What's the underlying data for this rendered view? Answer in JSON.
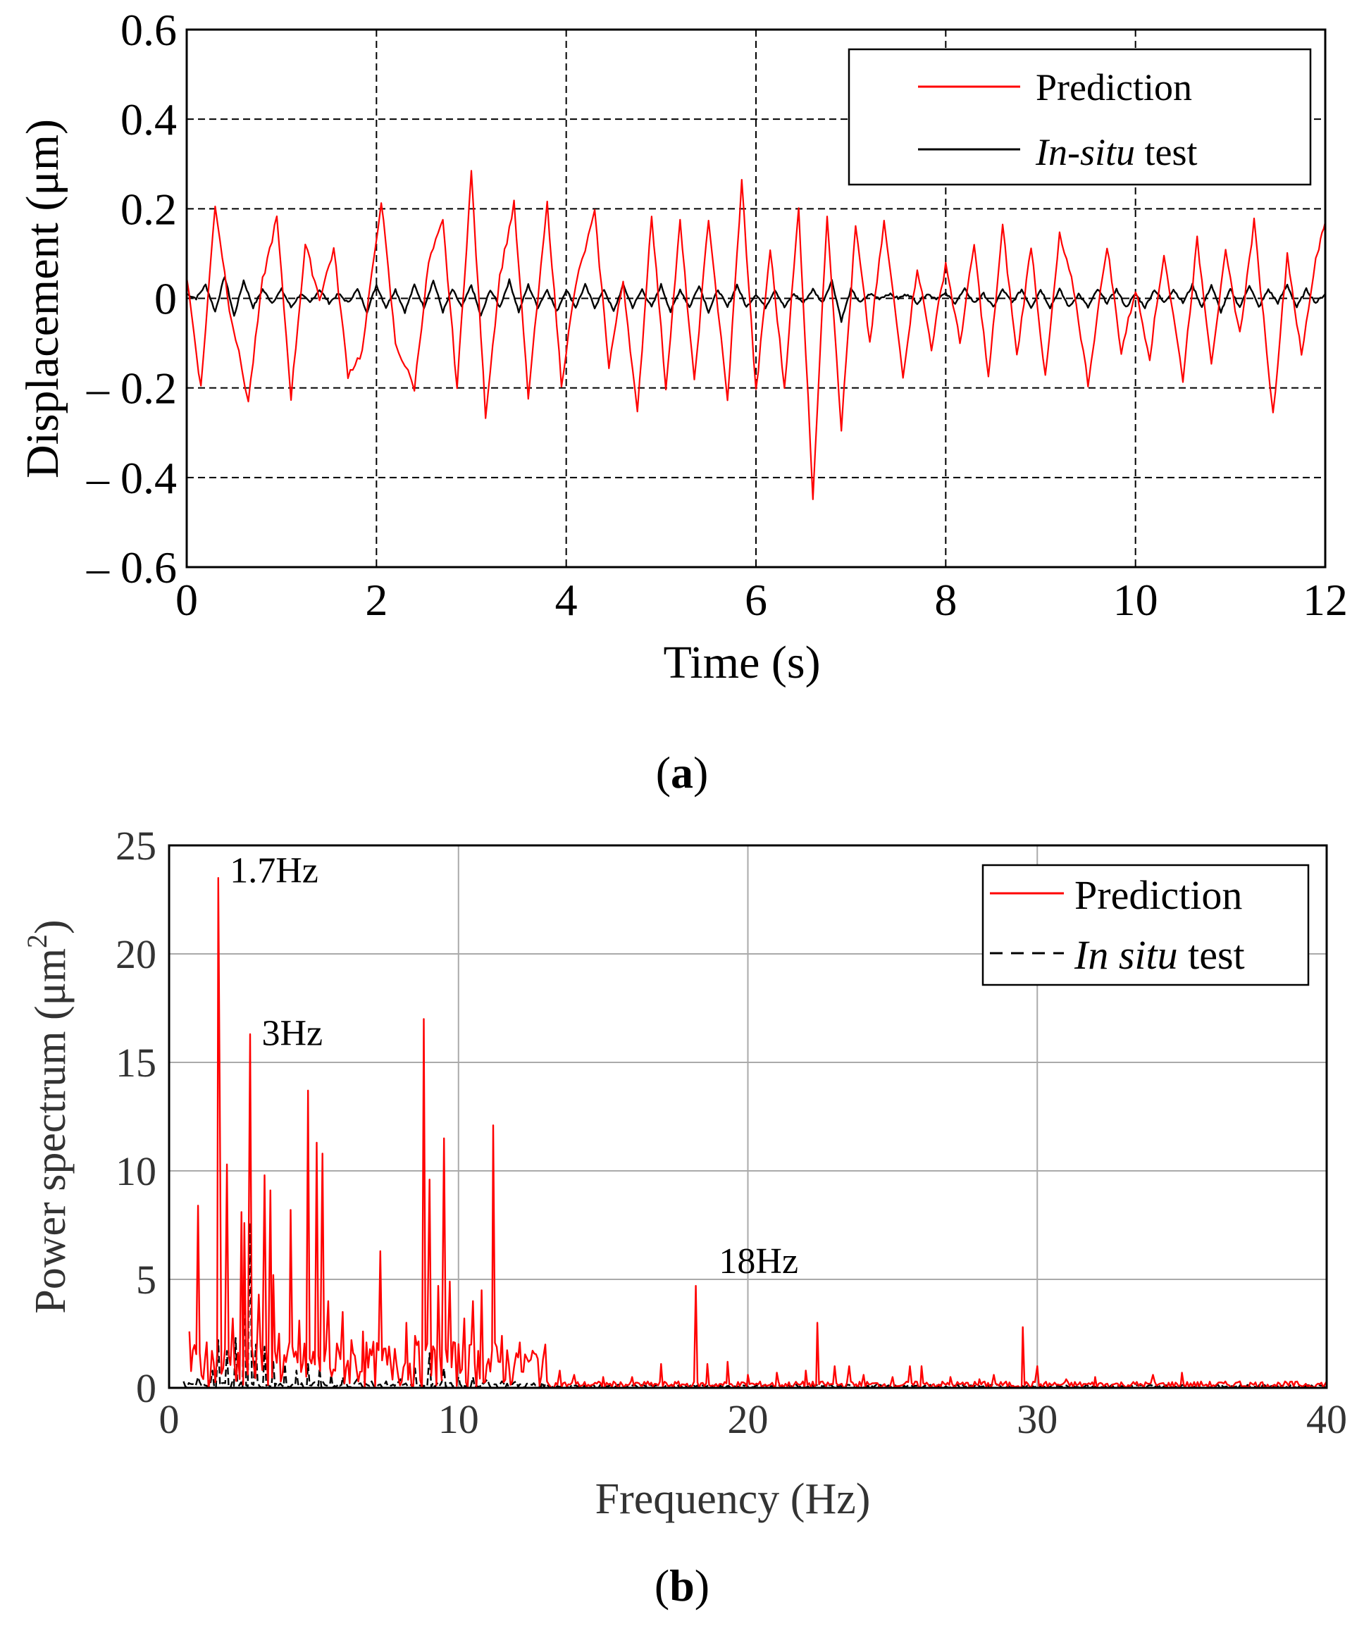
{
  "chart_data": [
    {
      "type": "line",
      "panel_label": "(a)",
      "panel_letter": "a",
      "xlabel": "Time (s)",
      "ylabel": "Displacement (μm)",
      "xlim": [
        0,
        12
      ],
      "ylim": [
        -0.6,
        0.6
      ],
      "xticks": [
        0,
        2,
        4,
        6,
        8,
        10,
        12
      ],
      "xtick_labels": [
        "0",
        "2",
        "4",
        "6",
        "8",
        "10",
        "12"
      ],
      "yticks": [
        0.6,
        0.4,
        0.2,
        0,
        -0.2,
        -0.4,
        -0.6
      ],
      "ytick_labels": [
        "0.6",
        "0.4",
        "0.2",
        "0",
        "– 0.2",
        "– 0.4",
        "– 0.6"
      ],
      "grid": true,
      "legend_position": "top-right",
      "series": [
        {
          "name": "Prediction",
          "color": "#ff0000",
          "style": "solid",
          "x": [
            0.0,
            0.15,
            0.3,
            0.45,
            0.65,
            0.8,
            0.95,
            1.1,
            1.25,
            1.4,
            1.55,
            1.7,
            1.85,
            2.05,
            2.2,
            2.4,
            2.55,
            2.7,
            2.85,
            3.0,
            3.15,
            3.3,
            3.45,
            3.6,
            3.8,
            3.95,
            4.1,
            4.3,
            4.45,
            4.6,
            4.75,
            4.9,
            5.05,
            5.2,
            5.35,
            5.5,
            5.7,
            5.85,
            6.0,
            6.15,
            6.3,
            6.45,
            6.6,
            6.75,
            6.9,
            7.05,
            7.2,
            7.35,
            7.55,
            7.7,
            7.85,
            8.0,
            8.15,
            8.3,
            8.45,
            8.6,
            8.75,
            8.9,
            9.05,
            9.2,
            9.35,
            9.5,
            9.7,
            9.85,
            10.0,
            10.15,
            10.3,
            10.5,
            10.65,
            10.8,
            10.95,
            11.1,
            11.25,
            11.45,
            11.6,
            11.75,
            11.9,
            12.0
          ],
          "y": [
            0.05,
            -0.2,
            0.21,
            -0.02,
            -0.23,
            0.04,
            0.18,
            -0.22,
            0.12,
            0.0,
            0.11,
            -0.17,
            -0.12,
            0.22,
            -0.1,
            -0.2,
            0.08,
            0.17,
            -0.2,
            0.28,
            -0.26,
            0.05,
            0.21,
            -0.22,
            0.21,
            -0.19,
            0.03,
            0.19,
            -0.15,
            0.04,
            -0.26,
            0.19,
            -0.2,
            0.17,
            -0.19,
            0.18,
            -0.23,
            0.26,
            -0.21,
            0.11,
            -0.2,
            0.2,
            -0.44,
            0.19,
            -0.29,
            0.16,
            -0.1,
            0.17,
            -0.17,
            0.07,
            -0.11,
            0.08,
            -0.1,
            0.12,
            -0.18,
            0.16,
            -0.13,
            0.12,
            -0.18,
            0.14,
            0.02,
            -0.19,
            0.12,
            -0.12,
            0.02,
            -0.13,
            0.1,
            -0.18,
            0.13,
            -0.14,
            0.1,
            -0.08,
            0.17,
            -0.26,
            0.1,
            -0.13,
            0.09,
            0.17
          ]
        },
        {
          "name": "In-situ test",
          "name_italic": "In-situ",
          "name_rest": " test",
          "color": "#000000",
          "style": "solid",
          "x": [
            0.0,
            0.1,
            0.2,
            0.3,
            0.4,
            0.5,
            0.6,
            0.7,
            0.8,
            0.9,
            1.0,
            1.1,
            1.2,
            1.3,
            1.4,
            1.5,
            1.6,
            1.7,
            1.8,
            1.9,
            2.0,
            2.1,
            2.2,
            2.3,
            2.4,
            2.5,
            2.6,
            2.7,
            2.8,
            2.9,
            3.0,
            3.1,
            3.2,
            3.3,
            3.4,
            3.5,
            3.6,
            3.7,
            3.8,
            3.9,
            4.0,
            4.1,
            4.2,
            4.3,
            4.4,
            4.5,
            4.6,
            4.7,
            4.8,
            4.9,
            5.0,
            5.1,
            5.2,
            5.3,
            5.4,
            5.5,
            5.6,
            5.7,
            5.8,
            5.9,
            6.0,
            6.1,
            6.2,
            6.3,
            6.4,
            6.5,
            6.6,
            6.7,
            6.8,
            6.9,
            7.0,
            7.1,
            7.2,
            7.3,
            7.4,
            7.5,
            7.6,
            7.7,
            7.8,
            7.9,
            8.0,
            8.1,
            8.2,
            8.3,
            8.4,
            8.5,
            8.6,
            8.7,
            8.8,
            8.9,
            9.0,
            9.1,
            9.2,
            9.3,
            9.4,
            9.5,
            9.6,
            9.7,
            9.8,
            9.9,
            10.0,
            10.1,
            10.2,
            10.3,
            10.4,
            10.5,
            10.6,
            10.7,
            10.8,
            10.9,
            11.0,
            11.1,
            11.2,
            11.3,
            11.4,
            11.5,
            11.6,
            11.7,
            11.8,
            11.9,
            12.0
          ],
          "y": [
            0.01,
            0.0,
            0.03,
            -0.03,
            0.05,
            -0.04,
            0.04,
            -0.02,
            0.02,
            -0.01,
            0.02,
            -0.02,
            0.01,
            -0.01,
            0.02,
            -0.01,
            0.01,
            -0.01,
            0.02,
            -0.03,
            0.03,
            -0.02,
            0.02,
            -0.03,
            0.03,
            -0.02,
            0.04,
            -0.03,
            0.02,
            -0.02,
            0.03,
            -0.04,
            0.02,
            -0.02,
            0.04,
            -0.03,
            0.03,
            -0.02,
            0.02,
            -0.03,
            0.02,
            -0.02,
            0.03,
            -0.02,
            0.02,
            -0.03,
            0.03,
            -0.02,
            0.02,
            -0.02,
            0.03,
            -0.03,
            0.02,
            -0.02,
            0.03,
            -0.03,
            0.02,
            -0.02,
            0.03,
            -0.02,
            0.01,
            -0.02,
            0.02,
            -0.02,
            0.01,
            -0.01,
            0.02,
            -0.01,
            0.04,
            -0.05,
            0.02,
            -0.01,
            0.01,
            0.0,
            0.01,
            0.0,
            0.01,
            -0.01,
            0.01,
            0.0,
            0.01,
            -0.01,
            0.02,
            -0.01,
            0.01,
            -0.02,
            0.02,
            -0.01,
            0.02,
            -0.02,
            0.02,
            -0.02,
            0.02,
            -0.02,
            0.01,
            -0.02,
            0.02,
            -0.01,
            0.02,
            -0.02,
            0.01,
            -0.02,
            0.02,
            -0.01,
            0.02,
            -0.01,
            0.03,
            -0.02,
            0.03,
            -0.03,
            0.02,
            -0.02,
            0.03,
            -0.02,
            0.02,
            -0.01,
            0.03,
            -0.02,
            0.02,
            -0.01,
            0.01
          ]
        }
      ]
    },
    {
      "type": "line",
      "panel_label": "(b)",
      "panel_letter": "b",
      "xlabel": "Frequency (Hz)",
      "ylabel": "Power spectrum (μm",
      "ylabel_sup": "2",
      "ylabel_close": ")",
      "xlim": [
        0,
        40
      ],
      "ylim": [
        0,
        25
      ],
      "xticks": [
        0,
        10,
        20,
        30,
        40
      ],
      "xtick_labels": [
        "0",
        "10",
        "20",
        "30",
        "40"
      ],
      "yticks": [
        0,
        5,
        10,
        15,
        20,
        25
      ],
      "ytick_labels": [
        "0",
        "5",
        "10",
        "15",
        "20",
        "25"
      ],
      "grid": true,
      "legend_position": "top-right",
      "annotations": [
        {
          "text": "1.7Hz",
          "x": 2.1,
          "y": 23.3
        },
        {
          "text": "3Hz",
          "x": 3.2,
          "y": 15.8
        },
        {
          "text": "18Hz",
          "x": 19.0,
          "y": 5.3
        }
      ],
      "series": [
        {
          "name": "Prediction",
          "color": "#ff0000",
          "style": "solid",
          "peaks_x": [
            0.7,
            1.0,
            1.3,
            1.7,
            1.75,
            2.0,
            2.2,
            2.5,
            2.6,
            2.8,
            3.1,
            3.3,
            3.5,
            3.6,
            3.8,
            4.2,
            4.5,
            4.8,
            5.1,
            5.3,
            5.5,
            6.0,
            6.3,
            6.7,
            7.0,
            7.3,
            7.8,
            8.2,
            8.5,
            8.8,
            9.0,
            9.3,
            9.5,
            9.7,
            10.2,
            10.5,
            10.8,
            11.2,
            11.5,
            12.0,
            12.5,
            13.0,
            13.5,
            14.0,
            15.0,
            16.0,
            17.0,
            18.2,
            18.6,
            19.3,
            20.0,
            21.0,
            22.0,
            22.4,
            23.0,
            23.5,
            24.0,
            25.0,
            25.6,
            26.0,
            27.0,
            28.0,
            28.5,
            29.5,
            30.0,
            31.0,
            32.0,
            34.0,
            35.0,
            37.0,
            40.0
          ],
          "peaks_y": [
            2.6,
            8.4,
            2.1,
            23.5,
            13.4,
            10.3,
            3.2,
            8.1,
            7.6,
            16.3,
            4.3,
            9.8,
            9.1,
            5.2,
            2.5,
            8.2,
            3.1,
            13.7,
            11.3,
            10.8,
            4.0,
            3.5,
            2.2,
            2.6,
            1.5,
            6.3,
            1.8,
            3.0,
            2.4,
            17.0,
            9.6,
            4.7,
            11.5,
            4.9,
            3.2,
            4.0,
            4.5,
            12.1,
            2.4,
            1.6,
            1.3,
            2.0,
            0.8,
            0.6,
            0.5,
            0.5,
            1.1,
            4.7,
            1.1,
            1.2,
            0.6,
            0.7,
            0.8,
            3.0,
            1.0,
            1.0,
            0.6,
            0.5,
            1.0,
            1.0,
            0.5,
            0.4,
            0.6,
            2.8,
            1.0,
            0.4,
            0.5,
            0.6,
            0.7,
            0.3,
            0.3
          ]
        },
        {
          "name": "In situ test",
          "name_italic": "In situ",
          "name_rest": "  test",
          "color": "#000000",
          "style": "dashed",
          "peaks_x": [
            0.5,
            1.0,
            1.5,
            1.7,
            2.0,
            2.3,
            2.6,
            2.8,
            3.0,
            3.3,
            3.6,
            4.0,
            4.4,
            4.8,
            5.2,
            5.6,
            6.0,
            6.5,
            7.0,
            7.5,
            8.0,
            8.5,
            9.0,
            9.5,
            10.0,
            10.5,
            11.0,
            11.5,
            12.0,
            13.0,
            14.0,
            20.0,
            30.0,
            40.0
          ],
          "peaks_y": [
            0.3,
            0.5,
            0.8,
            2.2,
            1.7,
            2.3,
            5.5,
            7.6,
            2.0,
            1.9,
            1.2,
            1.1,
            0.8,
            1.1,
            0.9,
            0.6,
            0.5,
            0.4,
            0.3,
            0.3,
            0.4,
            0.9,
            1.6,
            0.9,
            0.5,
            0.5,
            0.4,
            0.3,
            0.3,
            0.2,
            0.1,
            0.05,
            0.05,
            0.05
          ]
        }
      ]
    }
  ]
}
